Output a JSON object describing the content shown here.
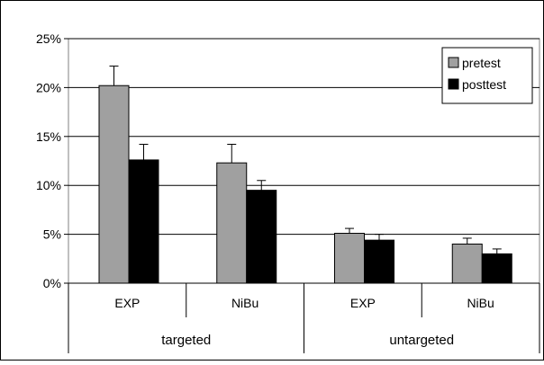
{
  "chart_data": {
    "type": "bar",
    "title": "",
    "xlabel": "",
    "ylabel": "",
    "ylim": [
      0,
      25
    ],
    "yticks": [
      "0%",
      "5%",
      "10%",
      "15%",
      "20%",
      "25%"
    ],
    "grid": true,
    "legend_position": "top-right",
    "categories": [
      "EXP",
      "NiBu",
      "EXP",
      "NiBu"
    ],
    "groups": [
      {
        "label": "targeted",
        "categories": [
          "EXP",
          "NiBu"
        ]
      },
      {
        "label": "untargeted",
        "categories": [
          "EXP",
          "NiBu"
        ]
      }
    ],
    "series": [
      {
        "name": "pretest",
        "color": "#a0a0a0",
        "values": [
          20.2,
          12.3,
          5.1,
          4.0
        ],
        "errors": [
          2.0,
          1.9,
          0.5,
          0.6
        ]
      },
      {
        "name": "posttest",
        "color": "#000000",
        "values": [
          12.6,
          9.5,
          4.4,
          3.0
        ],
        "errors": [
          1.6,
          1.0,
          0.6,
          0.5
        ]
      }
    ]
  }
}
